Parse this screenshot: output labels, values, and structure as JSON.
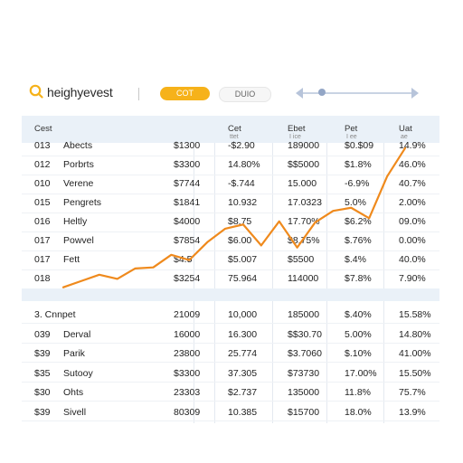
{
  "header": {
    "brand": "heighyevest",
    "primary_pill": "COT",
    "secondary_pill": "DUIO",
    "accent_color": "#f6b21a",
    "logo_icon": "search-icon"
  },
  "table": {
    "columns": [
      {
        "label": "Cest",
        "sub": ""
      },
      {
        "label": "",
        "sub": ""
      },
      {
        "label": "",
        "sub": ""
      },
      {
        "label": "Cet",
        "sub": "ttet"
      },
      {
        "label": "Ebet",
        "sub": "I ice"
      },
      {
        "label": "Pet",
        "sub": "I ee"
      },
      {
        "label": "Uat",
        "sub": "ae"
      }
    ],
    "section1": [
      [
        "013",
        "Abects",
        "$1300",
        "-$2.90",
        "189000",
        "$0.$09",
        "14.9%"
      ],
      [
        "012",
        "Porbrts",
        "$3300",
        "14.80%",
        "$$5000",
        "$1.8%",
        "46.0%"
      ],
      [
        "010",
        "Verene",
        "$7744",
        "-$.744",
        "15.000",
        "-6.9%",
        "40.7%"
      ],
      [
        "015",
        "Pengrets",
        "$1841",
        "10.932",
        "17.0323",
        "5.0%",
        "2.00%"
      ],
      [
        "016",
        "Heltly",
        "$4000",
        "$8.75",
        "17.70%",
        "$6.2%",
        "09.0%"
      ],
      [
        "017",
        "Powvel",
        "$7854",
        "$6.00",
        "$8.75%",
        "$.76%",
        "0.00%"
      ],
      [
        "017",
        "Fett",
        "$4.5",
        "$5.007",
        "$5500",
        "$.4%",
        "40.0%"
      ],
      [
        "018",
        "",
        "$3254",
        "75.964",
        "114000",
        "$7.8%",
        "7.90%"
      ]
    ],
    "section2_title": "3. Cnnpet",
    "section2": [
      [
        "",
        "",
        "21009",
        "10,000",
        "185000",
        "$.40%",
        "15.58%"
      ],
      [
        "039",
        "Derval",
        "16000",
        "16.300",
        "$$30.70",
        "5.00%",
        "14.80%"
      ],
      [
        "$39",
        "Parik",
        "23800",
        "25.774",
        "$3.7060",
        "$.10%",
        "41.00%"
      ],
      [
        "$35",
        "Sutooy",
        "$3300",
        "37.305",
        "$73730",
        "17.00%",
        "15.50%"
      ],
      [
        "$30",
        "Ohts",
        "23303",
        "$2.737",
        "135000",
        "11.8%",
        "75.7%"
      ],
      [
        "$39",
        "Sivell",
        "80309",
        "10.385",
        "$15700",
        "18.0%",
        "13.9%"
      ]
    ]
  },
  "chart_data": {
    "type": "line",
    "color": "#ef8a1d",
    "title": "",
    "xlabel": "",
    "ylabel": "",
    "grid": false,
    "legend": "none",
    "x": [
      1,
      2,
      3,
      4,
      5,
      6,
      7,
      8,
      9,
      10,
      11,
      12,
      13,
      14,
      15,
      16,
      17,
      18,
      19,
      20
    ],
    "values": [
      2,
      8,
      14,
      10,
      20,
      21,
      33,
      28,
      45,
      58,
      62,
      42,
      65,
      40,
      64,
      75,
      78,
      68,
      108,
      135
    ],
    "ylim": [
      0,
      140
    ]
  }
}
